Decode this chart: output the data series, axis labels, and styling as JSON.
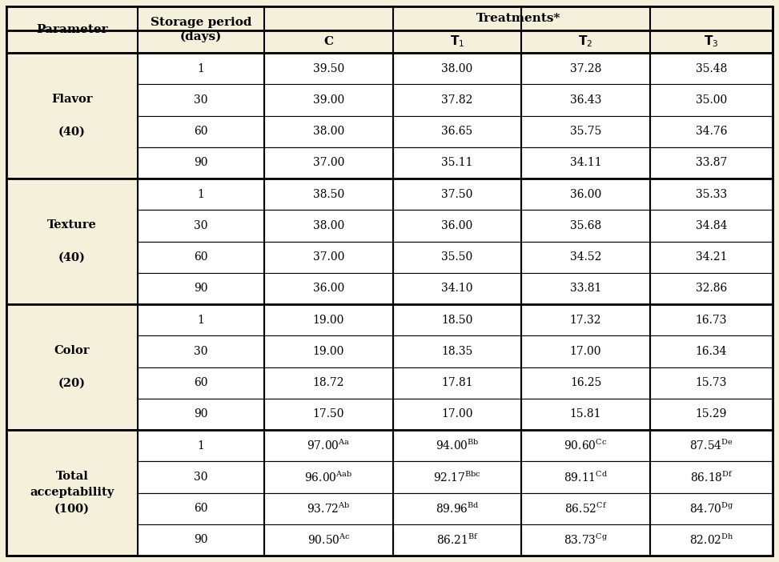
{
  "bg_color": "#f5f0dc",
  "white": "#ffffff",
  "border_color": "#000000",
  "parameters": [
    {
      "name": "Flavor\n\n(40)",
      "days": [
        "1",
        "30",
        "60",
        "90"
      ],
      "C": [
        "39.50",
        "39.00",
        "38.00",
        "37.00"
      ],
      "T1": [
        "38.00",
        "37.82",
        "36.65",
        "35.11"
      ],
      "T2": [
        "37.28",
        "36.43",
        "35.75",
        "34.11"
      ],
      "T3": [
        "35.48",
        "35.00",
        "34.76",
        "33.87"
      ],
      "sup_C": [
        "",
        "",
        "",
        ""
      ],
      "sup_T1": [
        "",
        "",
        "",
        ""
      ],
      "sup_T2": [
        "",
        "",
        "",
        ""
      ],
      "sup_T3": [
        "",
        "",
        "",
        ""
      ]
    },
    {
      "name": "Texture\n\n(40)",
      "days": [
        "1",
        "30",
        "60",
        "90"
      ],
      "C": [
        "38.50",
        "38.00",
        "37.00",
        "36.00"
      ],
      "T1": [
        "37.50",
        "36.00",
        "35.50",
        "34.10"
      ],
      "T2": [
        "36.00",
        "35.68",
        "34.52",
        "33.81"
      ],
      "T3": [
        "35.33",
        "34.84",
        "34.21",
        "32.86"
      ],
      "sup_C": [
        "",
        "",
        "",
        ""
      ],
      "sup_T1": [
        "",
        "",
        "",
        ""
      ],
      "sup_T2": [
        "",
        "",
        "",
        ""
      ],
      "sup_T3": [
        "",
        "",
        "",
        ""
      ]
    },
    {
      "name": "Color\n\n(20)",
      "days": [
        "1",
        "30",
        "60",
        "90"
      ],
      "C": [
        "19.00",
        "19.00",
        "18.72",
        "17.50"
      ],
      "T1": [
        "18.50",
        "18.35",
        "17.81",
        "17.00"
      ],
      "T2": [
        "17.32",
        "17.00",
        "16.25",
        "15.81"
      ],
      "T3": [
        "16.73",
        "16.34",
        "15.73",
        "15.29"
      ],
      "sup_C": [
        "",
        "",
        "",
        ""
      ],
      "sup_T1": [
        "",
        "",
        "",
        ""
      ],
      "sup_T2": [
        "",
        "",
        "",
        ""
      ],
      "sup_T3": [
        "",
        "",
        "",
        ""
      ]
    },
    {
      "name": "Total\nacceptability\n(100)",
      "days": [
        "1",
        "30",
        "60",
        "90"
      ],
      "C": [
        "97.00",
        "96.00",
        "93.72",
        "90.50"
      ],
      "T1": [
        "94.00",
        "92.17",
        "89.96",
        "86.21"
      ],
      "T2": [
        "90.60",
        "89.11",
        "86.52",
        "83.73"
      ],
      "T3": [
        "87.54",
        "86.18",
        "84.70",
        "82.02"
      ],
      "sup_C": [
        "Aa",
        "Aab",
        "Ab",
        "Ac"
      ],
      "sup_T1": [
        "Bb",
        "Bbc",
        "Bd",
        "Bf"
      ],
      "sup_T2": [
        "Cc",
        "Cd",
        "Cf",
        "Cg"
      ],
      "sup_T3": [
        "De",
        "Df",
        "Dg",
        "Dh"
      ]
    }
  ]
}
